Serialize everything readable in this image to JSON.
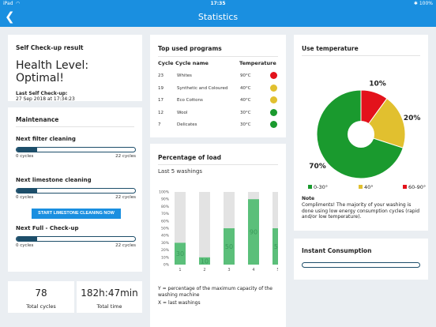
{
  "status_bar": {
    "device": "iPad",
    "wifi_icon": "wifi-icon",
    "time": "17:35",
    "right": "✱ 100%"
  },
  "nav": {
    "back_icon": "back-chevron-icon",
    "title": "Statistics"
  },
  "self_checkup": {
    "title": "Self Check-up result",
    "health_level": "Health Level: Optimal!",
    "last_label": "Last Self Check-up:",
    "last_value": "27 Sep 2018 at 17:34:23"
  },
  "maintenance": {
    "title": "Maintenance",
    "items": [
      {
        "label": "Next filter cleaning",
        "min": "0 cycles",
        "max": "22 cycles",
        "fill": 0.17
      },
      {
        "label": "Next limestone cleaning",
        "min": "0 cycles",
        "max": "22 cycles",
        "fill": 0.17
      },
      {
        "label": "Next Full - Check-up",
        "min": "0 cycles",
        "max": "22 cycles",
        "fill": 0.17
      }
    ],
    "limestone_button": "START LIMESTONE CLEANING NOW"
  },
  "totals": {
    "cycles_value": "78",
    "cycles_label": "Total cycles",
    "time_value": "182h:47min",
    "time_label": "Total time"
  },
  "top_programs": {
    "title": "Top used programs",
    "headers": {
      "cycle": "Cycle",
      "name": "Cycle name",
      "temp": "Temperature"
    },
    "rows": [
      {
        "cycle": "23",
        "name": "Whites",
        "temp": "90°C",
        "color": "#e3121b"
      },
      {
        "cycle": "19",
        "name": "Synthetic and Coloured",
        "temp": "40°C",
        "color": "#e1c02f"
      },
      {
        "cycle": "17",
        "name": "Eco Cottons",
        "temp": "40°C",
        "color": "#e1c02f"
      },
      {
        "cycle": "12",
        "name": "Wool",
        "temp": "30°C",
        "color": "#1a9a2e"
      },
      {
        "cycle": "7",
        "name": "Delicates",
        "temp": "30°C",
        "color": "#1a9a2e"
      }
    ]
  },
  "load": {
    "title": "Percentage of load",
    "subtitle": "Last 5 washings",
    "caption_y": "Y = percentage of the maximum capacity of the washing machine",
    "caption_x": "X = last washings"
  },
  "chart_data": [
    {
      "type": "bar",
      "categories": [
        "1",
        "2",
        "3",
        "4",
        "5"
      ],
      "values": [
        30,
        10,
        50,
        90,
        50
      ],
      "ylim": [
        0,
        100
      ],
      "yticks": [
        "0%",
        "10%",
        "20%",
        "30%",
        "40%",
        "50%",
        "60%",
        "70%",
        "80%",
        "90%",
        "100%"
      ],
      "bar_color": "#5bbf7a",
      "track_color": "#e3e3e3"
    },
    {
      "type": "pie",
      "title": "Use temperature",
      "slices": [
        {
          "label": "0-30°",
          "value": 70,
          "color": "#1a9a2e"
        },
        {
          "label": "40°",
          "value": 20,
          "color": "#e1c02f"
        },
        {
          "label": "60-90°",
          "value": 10,
          "color": "#e3121b"
        }
      ]
    }
  ],
  "temperature": {
    "title": "Use temperature",
    "note_title": "Note",
    "note_text": "Compliments! The majority of your washing is done using low energy consumption cycles (rapid and/or low temperature)."
  },
  "instant": {
    "title": "Instant Consumption"
  }
}
